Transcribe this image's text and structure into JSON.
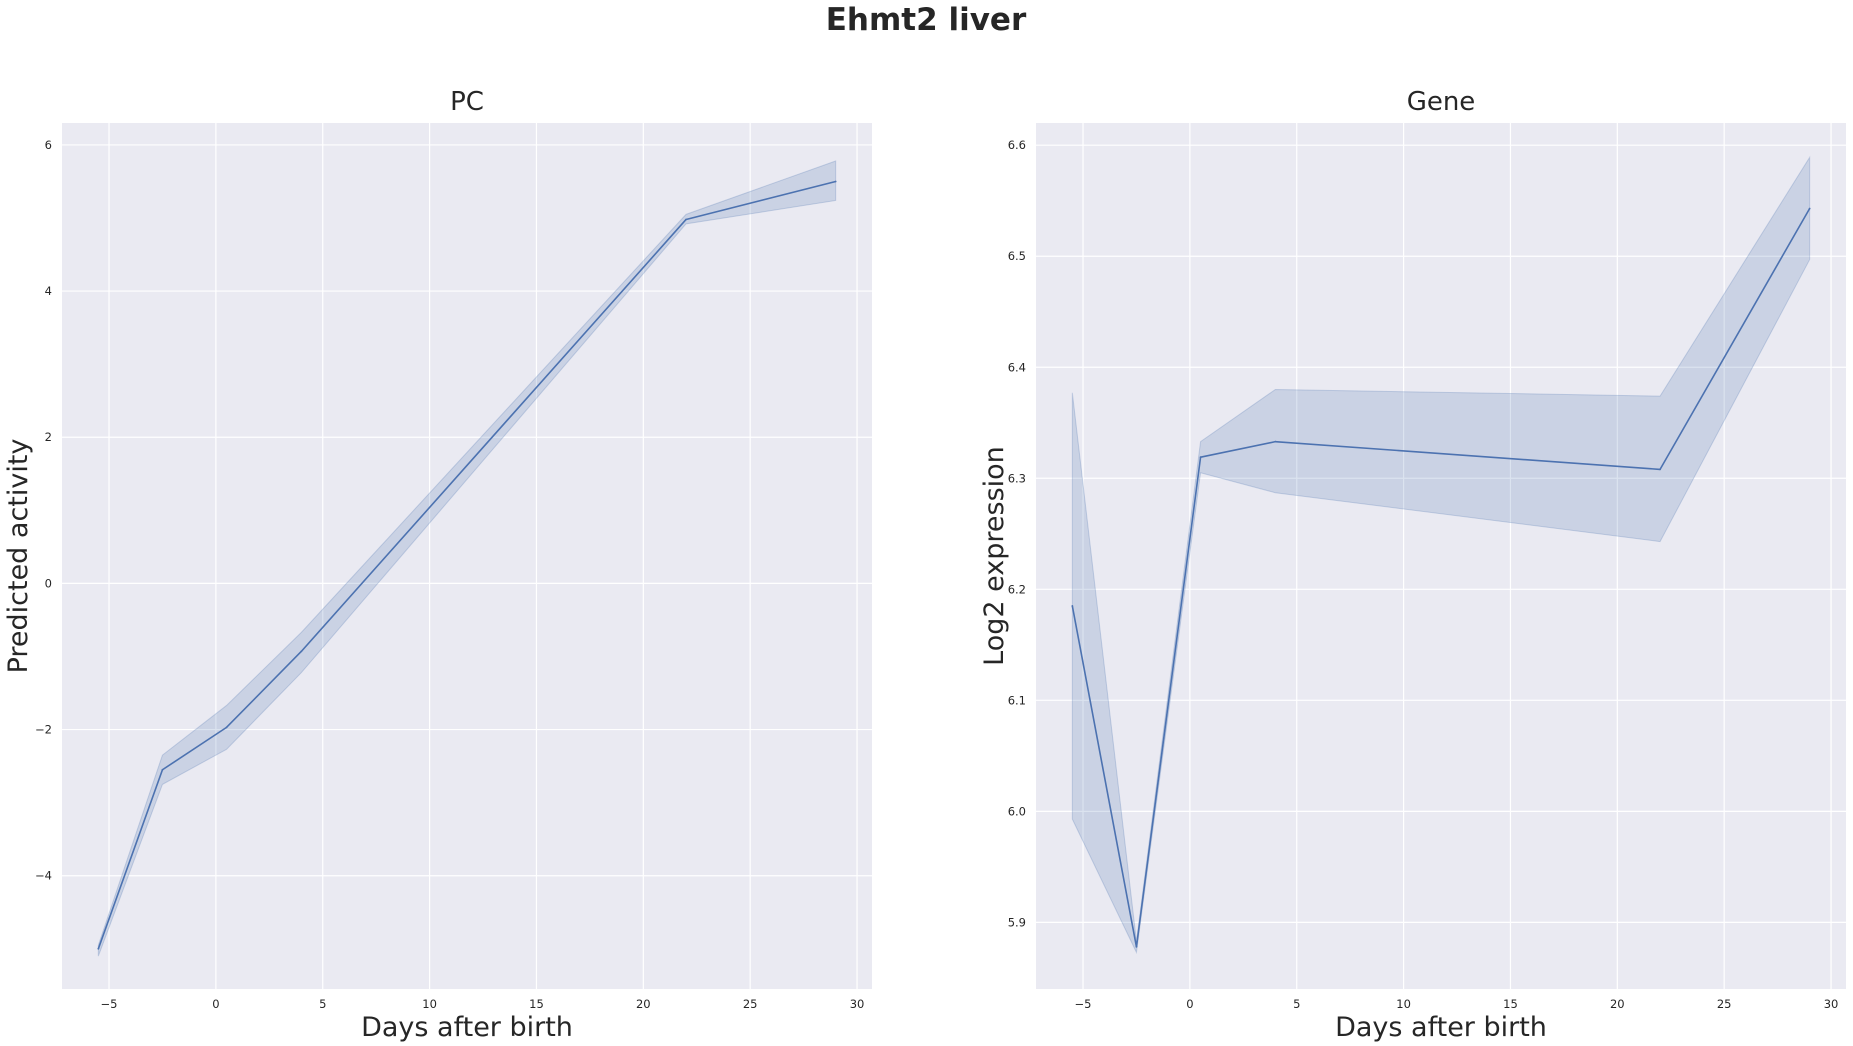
{
  "figure": {
    "title": "Ehmt2 liver",
    "background": "#ffffff",
    "axes_background": "#eaeaf2",
    "grid_color": "#ffffff",
    "line_color": "#4c72b0",
    "band_color": "#4c72b0"
  },
  "chart_data": [
    {
      "type": "line",
      "title": "PC",
      "xlabel": "Days after birth",
      "ylabel": "Predicted activity",
      "xlim": [
        -7.2,
        30.7
      ],
      "ylim": [
        -5.55,
        6.3
      ],
      "xticks": [
        -5,
        0,
        5,
        10,
        15,
        20,
        25,
        30
      ],
      "yticks": [
        -4,
        -2,
        0,
        2,
        4,
        6
      ],
      "grid": true,
      "x": [
        -5.5,
        -2.5,
        0.5,
        4,
        22,
        29
      ],
      "series": [
        {
          "values": [
            -5.0,
            -2.55,
            -1.97,
            -0.93,
            4.98,
            5.5
          ],
          "ci_lower": [
            -5.1,
            -2.75,
            -2.27,
            -1.22,
            4.92,
            5.24
          ],
          "ci_upper": [
            -4.95,
            -2.35,
            -1.67,
            -0.67,
            5.05,
            5.78
          ]
        }
      ]
    },
    {
      "type": "line",
      "title": "Gene",
      "xlabel": "Days after birth",
      "ylabel": "Log2 expression",
      "xlim": [
        -7.2,
        30.7
      ],
      "ylim": [
        5.84,
        6.62
      ],
      "xticks": [
        -5,
        0,
        5,
        10,
        15,
        20,
        25,
        30
      ],
      "yticks": [
        5.9,
        6.0,
        6.1,
        6.2,
        6.3,
        6.4,
        6.5,
        6.6
      ],
      "grid": true,
      "x": [
        -5.5,
        -2.5,
        0.5,
        4,
        22,
        29
      ],
      "series": [
        {
          "values": [
            6.185,
            5.878,
            6.319,
            6.333,
            6.308,
            6.543
          ],
          "ci_lower": [
            5.993,
            5.873,
            6.305,
            6.287,
            6.243,
            6.497
          ],
          "ci_upper": [
            6.377,
            5.883,
            6.333,
            6.38,
            6.374,
            6.589
          ]
        }
      ]
    }
  ]
}
